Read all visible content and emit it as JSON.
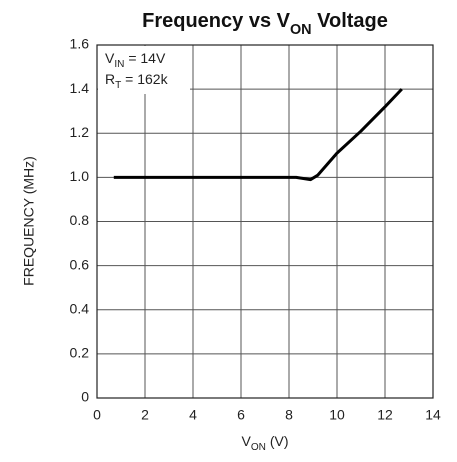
{
  "chart_data": {
    "type": "line",
    "title": {
      "main": "Frequency vs V",
      "sub": "ON",
      "tail": " Voltage"
    },
    "x_label": {
      "main": "V",
      "sub": "ON",
      "tail": " (V)"
    },
    "y_label": "FREQUENCY (MHz)",
    "annotations": [
      {
        "main": "V",
        "sub": "IN",
        "tail": " = 14V"
      },
      {
        "main": "R",
        "sub": "T",
        "tail": " = 162k"
      }
    ],
    "x": [
      0.7,
      8.3,
      8.6,
      8.9,
      9.2,
      10,
      11,
      12,
      12.7
    ],
    "series": [
      {
        "name": "Frequency",
        "color": "#000000",
        "values": [
          1.0,
          1.0,
          0.995,
          0.99,
          1.01,
          1.11,
          1.21,
          1.32,
          1.4
        ]
      }
    ],
    "xlim": [
      0,
      14
    ],
    "xticks": [
      0,
      2,
      4,
      6,
      8,
      10,
      12,
      14
    ],
    "ylim": [
      0,
      1.6
    ],
    "yticks": [
      0,
      0.2,
      0.4,
      0.6,
      0.8,
      {
        "value": 1,
        "label": "1.0"
      },
      1.2,
      1.4,
      1.6
    ],
    "grid": true
  }
}
